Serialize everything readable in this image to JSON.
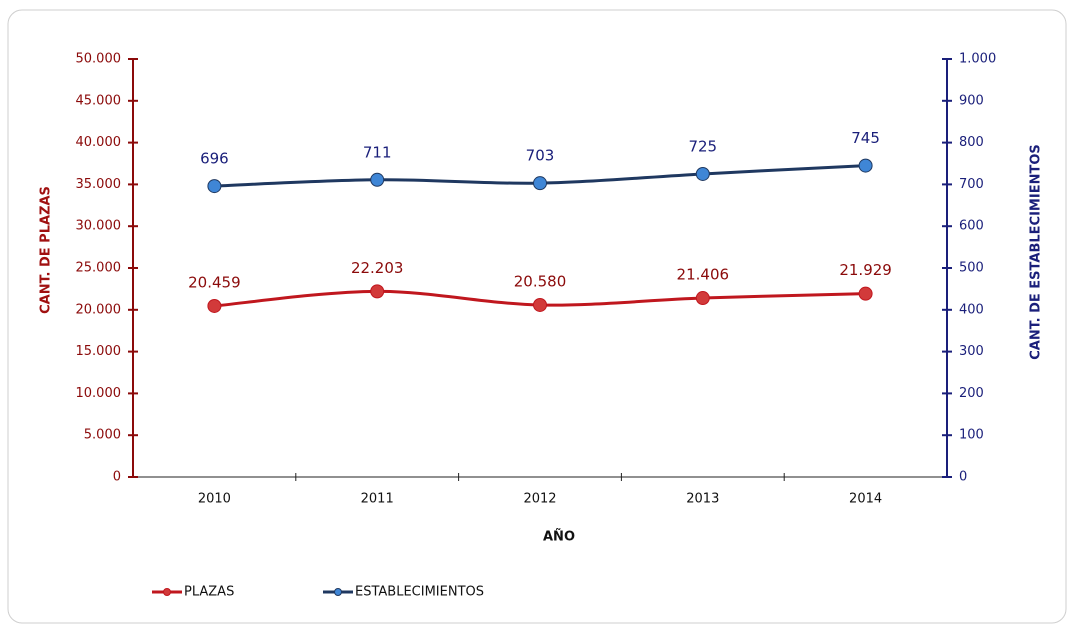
{
  "chart_data": {
    "type": "line",
    "xlabel": "AÑO",
    "ylabel": "CANT. DE PLAZAS",
    "y2label": "CANT. DE ESTABLECIMIENTOS",
    "categories": [
      "2010",
      "2011",
      "2012",
      "2013",
      "2014"
    ],
    "series": [
      {
        "name": "PLAZAS",
        "color": "#c0171e",
        "values": [
          20459,
          22203,
          20580,
          21406,
          21929
        ],
        "value_labels": [
          "20.459",
          "22.203",
          "20.580",
          "21.406",
          "21.929"
        ]
      },
      {
        "name": "ESTABLECIMIENTOS",
        "color": "#1f3860",
        "axis": "y2",
        "values": [
          696,
          711,
          703,
          725,
          745
        ]
      }
    ],
    "ylim": [
      0,
      50000
    ],
    "yticks": [
      0,
      {
        "value": 5000,
        "label": "5.000"
      },
      {
        "value": 10000,
        "label": "10.000"
      },
      {
        "value": 15000,
        "label": "15.000"
      },
      {
        "value": 20000,
        "label": "20.000"
      },
      {
        "value": 25000,
        "label": "25.000"
      },
      {
        "value": 30000,
        "label": "30.000"
      },
      {
        "value": 35000,
        "label": "35.000"
      },
      {
        "value": 40000,
        "label": "40.000"
      },
      {
        "value": 45000,
        "label": "45.000"
      },
      {
        "value": 50000,
        "label": "50.000"
      }
    ],
    "y2lim": [
      0,
      1000
    ],
    "y2ticks": [
      0,
      100,
      200,
      300,
      400,
      500,
      600,
      700,
      800,
      900,
      {
        "value": 1000,
        "label": "1.000"
      }
    ],
    "legend": "bottom-left"
  }
}
